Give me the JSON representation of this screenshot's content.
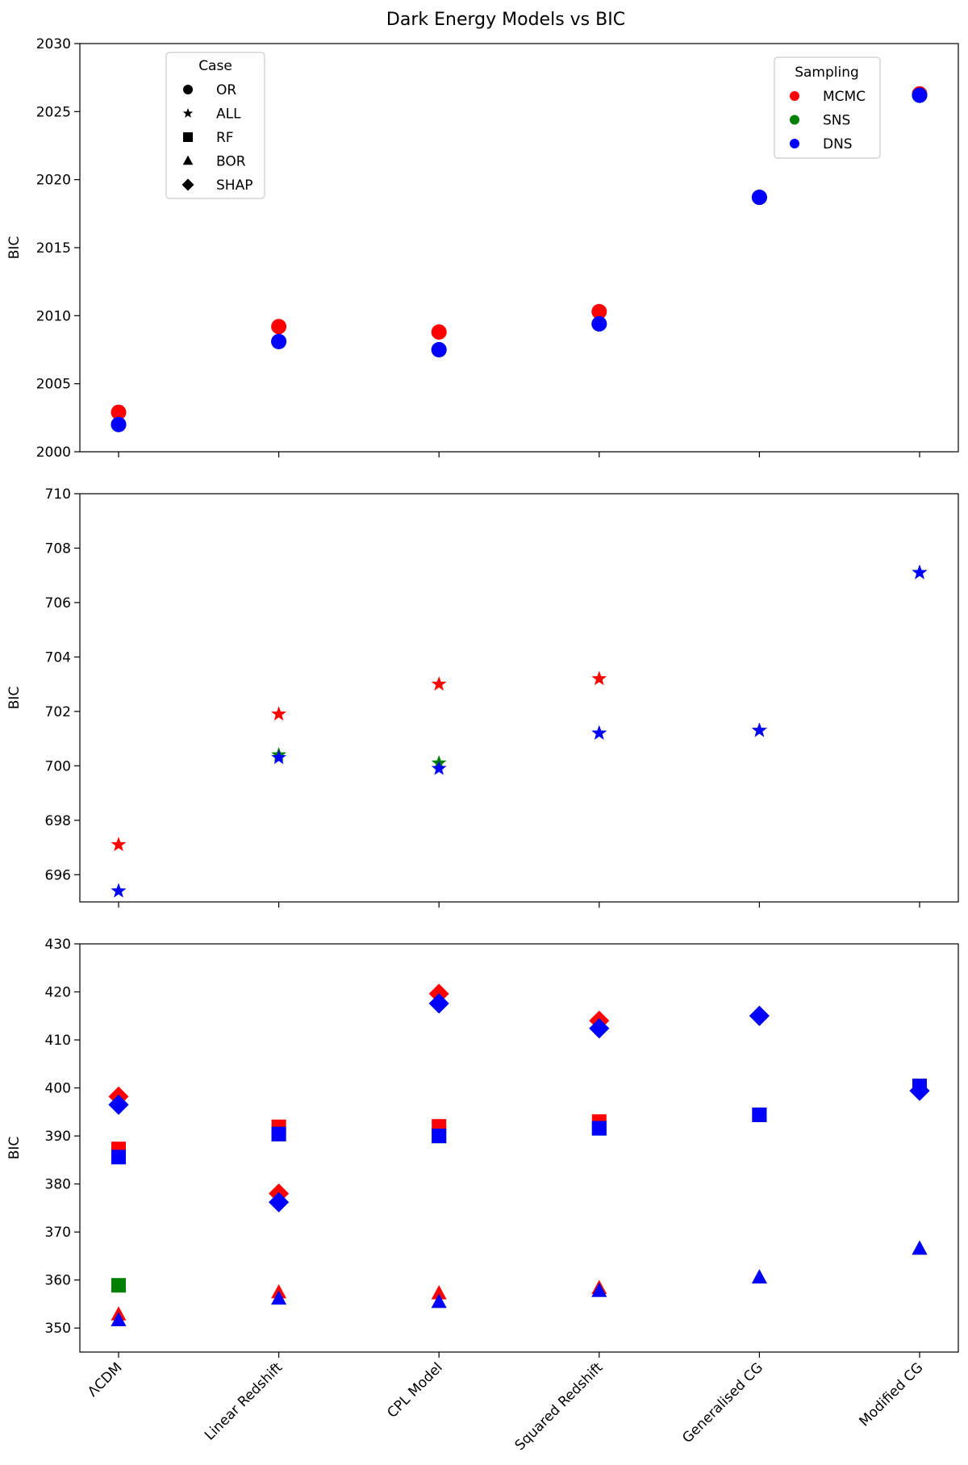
{
  "title": "Dark Energy Models vs BIC",
  "colors": {
    "MCMC": "#ff0000",
    "SNS": "#008000",
    "DNS": "#0000ff"
  },
  "legend_case": {
    "title": "Case",
    "items": [
      {
        "label": "OR",
        "marker": "circle"
      },
      {
        "label": "ALL",
        "marker": "star"
      },
      {
        "label": "RF",
        "marker": "square"
      },
      {
        "label": "BOR",
        "marker": "triangle"
      },
      {
        "label": "SHAP",
        "marker": "diamond"
      }
    ]
  },
  "legend_sampling": {
    "title": "Sampling",
    "items": [
      {
        "label": "MCMC",
        "color": "#ff0000"
      },
      {
        "label": "SNS",
        "color": "#008000"
      },
      {
        "label": "DNS",
        "color": "#0000ff"
      }
    ]
  },
  "chart_data": [
    {
      "type": "scatter",
      "ylabel": "BIC",
      "ylim": [
        2000,
        2030
      ],
      "yticks": [
        2000,
        2005,
        2010,
        2015,
        2020,
        2025,
        2030
      ],
      "categories": [
        "ΛCDM",
        "Linear Redshift",
        "CPL Model",
        "Squared Redshift",
        "Generalised CG",
        "Modified CG"
      ],
      "series": [
        {
          "case": "OR",
          "marker": "circle",
          "sampling": "MCMC",
          "values": [
            2002.9,
            2009.2,
            2008.8,
            2010.3,
            2018.7,
            2026.3
          ]
        },
        {
          "case": "OR",
          "marker": "circle",
          "sampling": "SNS",
          "values": [
            2002.0,
            2008.1,
            2007.5,
            2009.4,
            2018.7,
            2026.2
          ]
        },
        {
          "case": "OR",
          "marker": "circle",
          "sampling": "DNS",
          "values": [
            2002.0,
            2008.1,
            2007.5,
            2009.4,
            2018.7,
            2026.2
          ]
        }
      ]
    },
    {
      "type": "scatter",
      "ylabel": "BIC",
      "ylim": [
        695,
        710
      ],
      "yticks": [
        696,
        698,
        700,
        702,
        704,
        706,
        708,
        710
      ],
      "categories": [
        "ΛCDM",
        "Linear Redshift",
        "CPL Model",
        "Squared Redshift",
        "Generalised CG",
        "Modified CG"
      ],
      "series": [
        {
          "case": "ALL",
          "marker": "star",
          "sampling": "MCMC",
          "values": [
            697.1,
            701.9,
            703.0,
            703.2,
            701.3,
            707.1
          ]
        },
        {
          "case": "ALL",
          "marker": "star",
          "sampling": "SNS",
          "values": [
            695.4,
            700.4,
            700.1,
            701.2,
            701.3,
            707.1
          ]
        },
        {
          "case": "ALL",
          "marker": "star",
          "sampling": "DNS",
          "values": [
            695.4,
            700.3,
            699.9,
            701.2,
            701.3,
            707.1
          ]
        }
      ]
    },
    {
      "type": "scatter",
      "ylabel": "BIC",
      "ylim": [
        345,
        430
      ],
      "yticks": [
        350,
        360,
        370,
        380,
        390,
        400,
        410,
        420,
        430
      ],
      "categories": [
        "ΛCDM",
        "Linear Redshift",
        "CPL Model",
        "Squared Redshift",
        "Generalised CG",
        "Modified CG"
      ],
      "series": [
        {
          "case": "SHAP",
          "marker": "diamond",
          "sampling": "MCMC",
          "values": [
            398.2,
            378.0,
            419.6,
            414.0,
            415.0,
            399.4
          ]
        },
        {
          "case": "SHAP",
          "marker": "diamond",
          "sampling": "SNS",
          "values": [
            396.5,
            376.2,
            417.6,
            412.4,
            415.0,
            399.4
          ]
        },
        {
          "case": "SHAP",
          "marker": "diamond",
          "sampling": "DNS",
          "values": [
            396.5,
            376.2,
            417.6,
            412.4,
            415.0,
            399.4
          ]
        },
        {
          "case": "RF",
          "marker": "square",
          "sampling": "MCMC",
          "values": [
            387.3,
            391.9,
            392.0,
            393.0,
            394.4,
            400.4
          ]
        },
        {
          "case": "RF",
          "marker": "square",
          "sampling": "SNS",
          "values": [
            358.9,
            390.4,
            390.0,
            391.6,
            394.4,
            400.4
          ]
        },
        {
          "case": "RF",
          "marker": "square",
          "sampling": "DNS",
          "values": [
            385.6,
            390.4,
            390.0,
            391.6,
            394.4,
            400.4
          ]
        },
        {
          "case": "BOR",
          "marker": "triangle",
          "sampling": "MCMC",
          "values": [
            352.8,
            357.4,
            357.2,
            358.3,
            360.5,
            366.5
          ]
        },
        {
          "case": "BOR",
          "marker": "triangle",
          "sampling": "SNS",
          "values": [
            351.6,
            356.1,
            355.4,
            357.7,
            360.5,
            366.5
          ]
        },
        {
          "case": "BOR",
          "marker": "triangle",
          "sampling": "DNS",
          "values": [
            351.6,
            356.1,
            355.4,
            357.7,
            360.5,
            366.5
          ]
        }
      ]
    }
  ]
}
